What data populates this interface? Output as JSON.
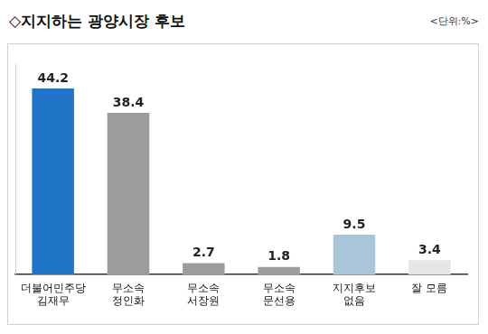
{
  "chart_data": {
    "type": "bar",
    "title": "◇지지하는 광양시장 후보",
    "subtitle": "<단위:%>",
    "categories": [
      "더불어민주당\n김재무",
      "무소속\n정인화",
      "무소속\n서장원",
      "무소속\n문선용",
      "지지후보\n없음",
      "잘 모름"
    ],
    "values": [
      44.2,
      38.4,
      2.7,
      1.8,
      9.5,
      3.4
    ],
    "colors": [
      "#1f74c8",
      "#9c9c9c",
      "#9c9c9c",
      "#9c9c9c",
      "#a8c6d8",
      "#e6e6e6"
    ],
    "ylim": [
      0,
      50
    ],
    "grid": false,
    "data_labels": true,
    "tick_labels": "x"
  }
}
